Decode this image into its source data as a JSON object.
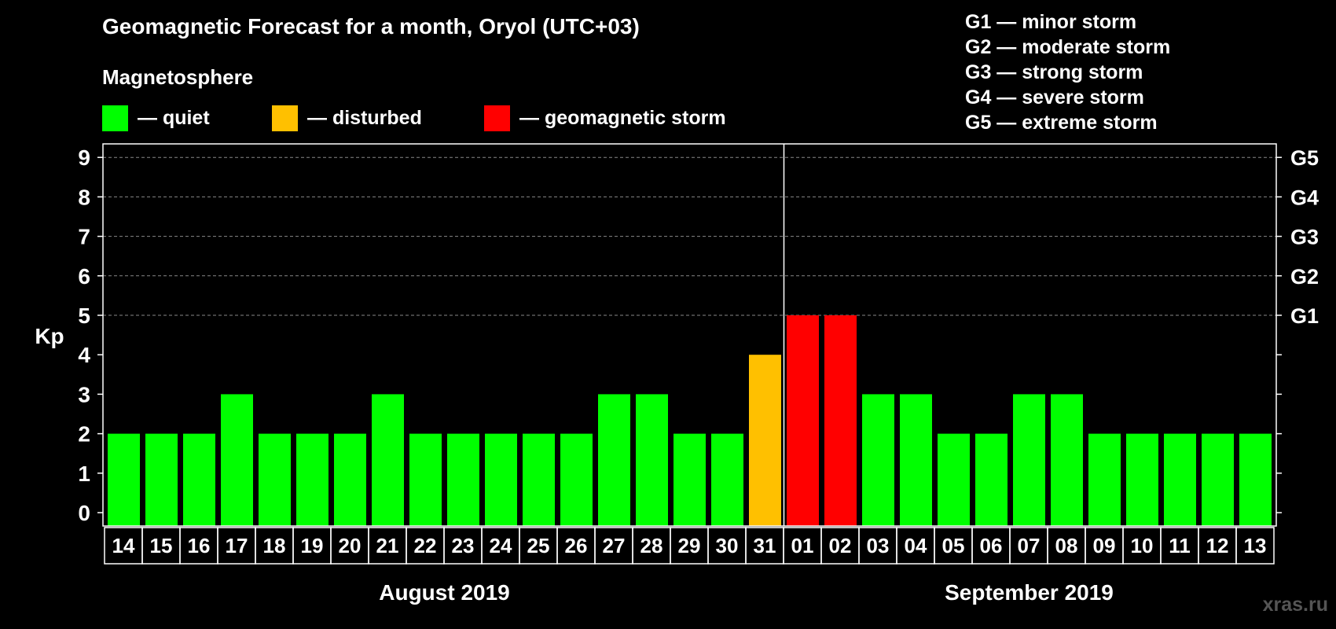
{
  "header": {
    "title": "Geomagnetic Forecast for a month, Oryol (UTC+03)",
    "subtitle": "Magnetosphere"
  },
  "legend": [
    {
      "label": "— quiet",
      "color": "#00ff00"
    },
    {
      "label": "— disturbed",
      "color": "#ffc000"
    },
    {
      "label": "— geomagnetic storm",
      "color": "#ff0000"
    }
  ],
  "storm_scale": [
    "G1 — minor storm",
    "G2 — moderate storm",
    "G3 — strong storm",
    "G4 — severe storm",
    "G5 — extreme storm"
  ],
  "watermark": "xras.ru",
  "chart_data": {
    "type": "bar",
    "title": "Geomagnetic Forecast for a month, Oryol (UTC+03)",
    "ylabel": "Kp",
    "xlabel": "",
    "ylim": [
      0,
      9
    ],
    "yticks": [
      "0",
      "1",
      "2",
      "3",
      "4",
      "5",
      "6",
      "7",
      "8",
      "9"
    ],
    "right_axis_labels": [
      {
        "kp": 5,
        "label": "G1"
      },
      {
        "kp": 6,
        "label": "G2"
      },
      {
        "kp": 7,
        "label": "G3"
      },
      {
        "kp": 8,
        "label": "G4"
      },
      {
        "kp": 9,
        "label": "G5"
      }
    ],
    "grid_dashed_from": 5,
    "categories": [
      "14",
      "15",
      "16",
      "17",
      "18",
      "19",
      "20",
      "21",
      "22",
      "23",
      "24",
      "25",
      "26",
      "27",
      "28",
      "29",
      "30",
      "31",
      "01",
      "02",
      "03",
      "04",
      "05",
      "06",
      "07",
      "08",
      "09",
      "10",
      "11",
      "12",
      "13"
    ],
    "values": [
      2,
      2,
      2,
      3,
      2,
      2,
      2,
      3,
      2,
      2,
      2,
      2,
      2,
      3,
      3,
      2,
      2,
      4,
      5,
      5,
      3,
      3,
      2,
      2,
      3,
      3,
      2,
      2,
      2,
      2,
      2
    ],
    "status": [
      "quiet",
      "quiet",
      "quiet",
      "quiet",
      "quiet",
      "quiet",
      "quiet",
      "quiet",
      "quiet",
      "quiet",
      "quiet",
      "quiet",
      "quiet",
      "quiet",
      "quiet",
      "quiet",
      "quiet",
      "disturbed",
      "storm",
      "storm",
      "quiet",
      "quiet",
      "quiet",
      "quiet",
      "quiet",
      "quiet",
      "quiet",
      "quiet",
      "quiet",
      "quiet",
      "quiet"
    ],
    "status_colors": {
      "quiet": "#00ff00",
      "disturbed": "#ffc000",
      "storm": "#ff0000"
    },
    "months": [
      {
        "label": "August 2019",
        "start_index": 0,
        "end_index": 17
      },
      {
        "label": "September 2019",
        "start_index": 18,
        "end_index": 30
      }
    ]
  }
}
